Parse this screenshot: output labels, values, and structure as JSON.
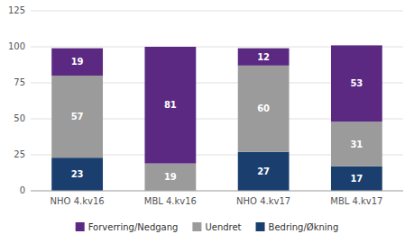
{
  "chart_data": {
    "type": "bar",
    "stacked": true,
    "categories": [
      "NHO 4.kv16",
      "MBL 4.kv16",
      "NHO 4.kv17",
      "MBL 4.kv17"
    ],
    "series": [
      {
        "name": "Bedring/Økning",
        "color": "#1a3f6f",
        "values": [
          23,
          0,
          27,
          17
        ]
      },
      {
        "name": "Uendret",
        "color": "#9b9b9b",
        "values": [
          57,
          19,
          60,
          31
        ]
      },
      {
        "name": "Forverring/Nedgang",
        "color": "#5b2882",
        "values": [
          19,
          81,
          12,
          53
        ]
      }
    ],
    "ylim": [
      0,
      125
    ],
    "yticks": [
      0,
      25,
      50,
      75,
      100,
      125
    ],
    "grid": true,
    "legend": "bottom",
    "data_labels": true
  }
}
